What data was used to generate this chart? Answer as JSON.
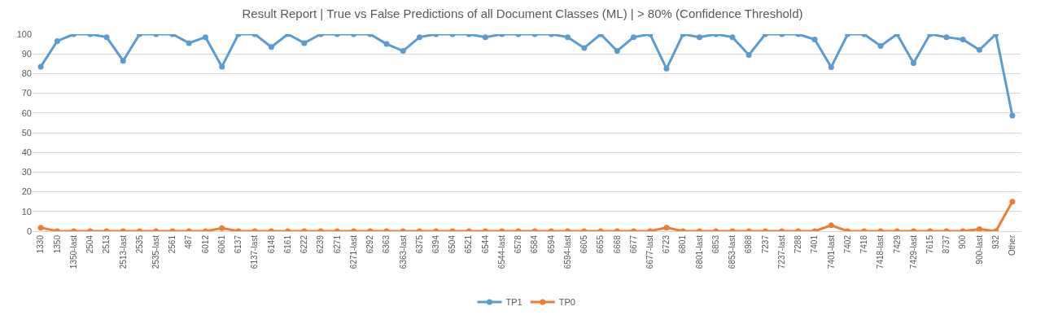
{
  "chart_data": {
    "type": "line",
    "title": "Result Report | True vs False Predictions of all Document Classes (ML) | > 80% (Confidence Threshold)",
    "categories": [
      "1330",
      "1350",
      "1350-last",
      "2504",
      "2513",
      "2513-last",
      "2535",
      "2535-last",
      "2561",
      "487",
      "6012",
      "6061",
      "6137",
      "6137-last",
      "6148",
      "6161",
      "6222",
      "6239",
      "6271",
      "6271-last",
      "6292",
      "6363",
      "6363-last",
      "6375",
      "6394",
      "6504",
      "6521",
      "6544",
      "6544-last",
      "6578",
      "6584",
      "6594",
      "6594-last",
      "6605",
      "6655",
      "6668",
      "6677",
      "6677-last",
      "6723",
      "6801",
      "6801-last",
      "6853",
      "6853-last",
      "6988",
      "7237",
      "7237-last",
      "7288",
      "7401",
      "7401-last",
      "7402",
      "7418",
      "7418-last",
      "7429",
      "7429-last",
      "7615",
      "8737",
      "900",
      "900-last",
      "932",
      "Other"
    ],
    "series": [
      {
        "name": "TP1",
        "color": "#5b9bd5",
        "values": [
          83.5,
          96.5,
          100,
          100,
          98.5,
          86.5,
          100,
          100,
          100,
          95.5,
          98.5,
          83.5,
          100,
          100,
          93.5,
          100,
          95.5,
          100,
          100,
          100,
          100,
          95,
          91.5,
          98.5,
          100,
          100,
          100,
          98.5,
          100,
          100,
          100,
          100,
          98.5,
          93,
          100,
          91.5,
          98.5,
          100,
          82.5,
          100,
          98.5,
          100,
          98.5,
          89.5,
          100,
          100,
          100,
          97.3,
          83.3,
          100,
          100,
          94,
          100,
          85.3,
          100,
          98.5,
          97.3,
          92,
          100,
          58.7
        ]
      },
      {
        "name": "TP0",
        "color": "#ed7d31",
        "values": [
          1.8,
          0,
          0,
          0,
          0,
          0,
          0,
          0,
          0,
          0,
          0,
          1.5,
          0,
          0,
          0,
          0,
          0,
          0,
          0,
          0,
          0,
          0,
          0,
          0,
          0,
          0,
          0,
          0,
          0,
          0,
          0,
          0,
          0,
          0,
          0,
          0,
          0,
          0,
          1.8,
          0,
          0,
          0,
          0,
          0,
          0,
          0,
          0,
          0,
          3,
          0,
          0,
          0,
          0,
          0,
          0,
          0,
          0,
          1,
          0,
          15
        ]
      }
    ],
    "ylim": [
      0,
      100
    ],
    "yticks": [
      0,
      10,
      20,
      30,
      40,
      50,
      60,
      70,
      80,
      90,
      100
    ],
    "grid": "y",
    "legend": "bottom",
    "marker": "circle",
    "line_style": "solid"
  }
}
